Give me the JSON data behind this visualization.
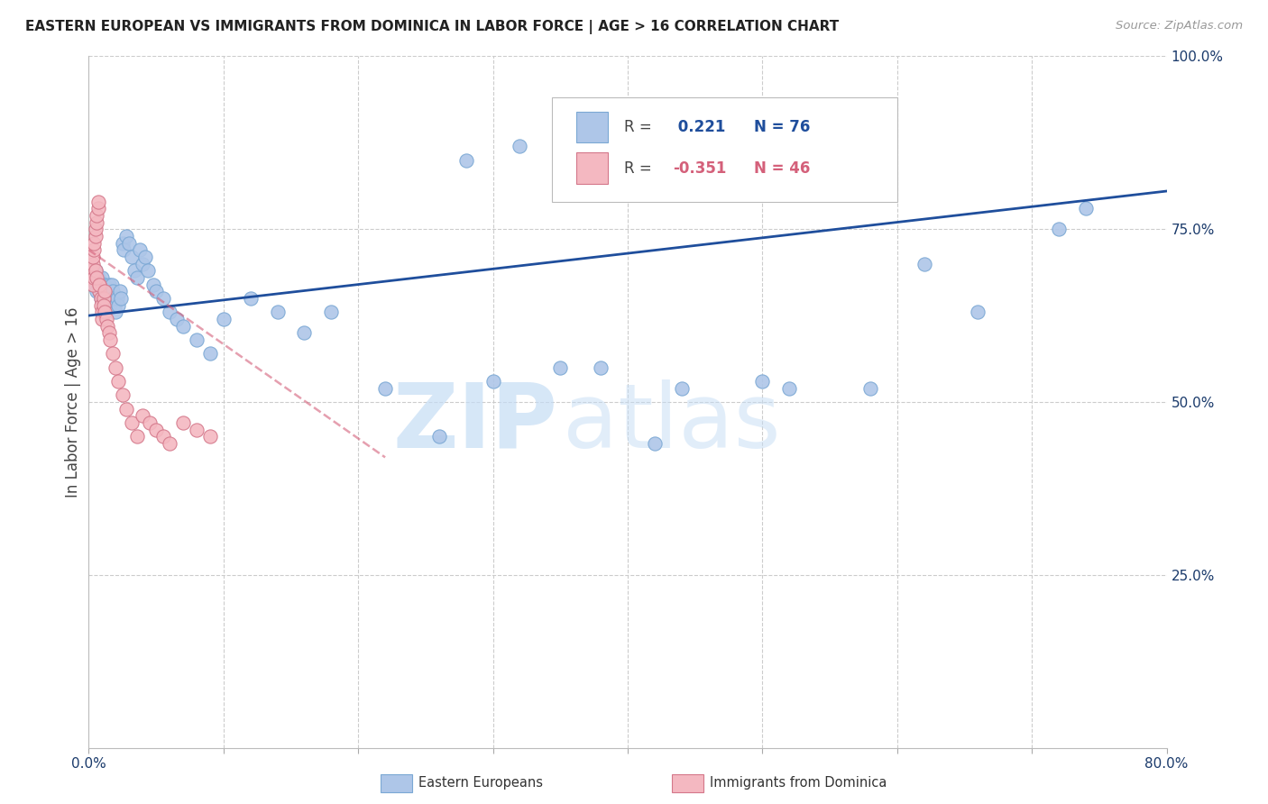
{
  "title": "EASTERN EUROPEAN VS IMMIGRANTS FROM DOMINICA IN LABOR FORCE | AGE > 16 CORRELATION CHART",
  "source": "Source: ZipAtlas.com",
  "ylabel": "In Labor Force | Age > 16",
  "xlim": [
    0.0,
    0.8
  ],
  "ylim": [
    0.0,
    1.0
  ],
  "blue_R": 0.221,
  "blue_N": 76,
  "pink_R": -0.351,
  "pink_N": 46,
  "blue_color": "#aec6e8",
  "blue_line_color": "#1f4e9c",
  "pink_color": "#f4b8c1",
  "pink_line_color": "#d4607a",
  "blue_edge_color": "#7ba8d4",
  "pink_edge_color": "#d4778a",
  "grid_color": "#cccccc",
  "watermark_zip": "ZIP",
  "watermark_atlas": "atlas",
  "legend_R_label_color": "#444444",
  "blue_scatter_x": [
    0.003,
    0.004,
    0.005,
    0.005,
    0.006,
    0.006,
    0.007,
    0.007,
    0.008,
    0.008,
    0.009,
    0.009,
    0.01,
    0.01,
    0.011,
    0.011,
    0.012,
    0.012,
    0.013,
    0.013,
    0.014,
    0.014,
    0.015,
    0.015,
    0.016,
    0.016,
    0.017,
    0.017,
    0.018,
    0.018,
    0.019,
    0.02,
    0.021,
    0.022,
    0.023,
    0.024,
    0.025,
    0.026,
    0.028,
    0.03,
    0.032,
    0.034,
    0.036,
    0.038,
    0.04,
    0.042,
    0.044,
    0.048,
    0.05,
    0.055,
    0.06,
    0.065,
    0.07,
    0.08,
    0.09,
    0.1,
    0.12,
    0.14,
    0.16,
    0.18,
    0.22,
    0.26,
    0.3,
    0.35,
    0.42,
    0.5,
    0.58,
    0.66,
    0.72,
    0.74,
    0.28,
    0.32,
    0.38,
    0.44,
    0.52,
    0.62
  ],
  "blue_scatter_y": [
    0.67,
    0.68,
    0.69,
    0.67,
    0.68,
    0.66,
    0.67,
    0.68,
    0.67,
    0.66,
    0.65,
    0.67,
    0.66,
    0.68,
    0.67,
    0.66,
    0.65,
    0.67,
    0.66,
    0.65,
    0.64,
    0.66,
    0.67,
    0.65,
    0.66,
    0.64,
    0.65,
    0.67,
    0.66,
    0.65,
    0.64,
    0.63,
    0.65,
    0.64,
    0.66,
    0.65,
    0.73,
    0.72,
    0.74,
    0.73,
    0.71,
    0.69,
    0.68,
    0.72,
    0.7,
    0.71,
    0.69,
    0.67,
    0.66,
    0.65,
    0.63,
    0.62,
    0.61,
    0.59,
    0.57,
    0.62,
    0.65,
    0.63,
    0.6,
    0.63,
    0.52,
    0.45,
    0.53,
    0.55,
    0.44,
    0.53,
    0.52,
    0.63,
    0.75,
    0.78,
    0.85,
    0.87,
    0.55,
    0.52,
    0.52,
    0.7
  ],
  "pink_scatter_x": [
    0.001,
    0.002,
    0.003,
    0.003,
    0.004,
    0.004,
    0.005,
    0.005,
    0.006,
    0.006,
    0.007,
    0.007,
    0.008,
    0.008,
    0.009,
    0.009,
    0.01,
    0.01,
    0.011,
    0.011,
    0.012,
    0.013,
    0.014,
    0.015,
    0.016,
    0.018,
    0.02,
    0.022,
    0.025,
    0.028,
    0.032,
    0.036,
    0.04,
    0.045,
    0.05,
    0.055,
    0.06,
    0.07,
    0.08,
    0.09,
    0.003,
    0.004,
    0.005,
    0.006,
    0.008,
    0.012
  ],
  "pink_scatter_y": [
    0.68,
    0.69,
    0.7,
    0.71,
    0.72,
    0.73,
    0.74,
    0.75,
    0.76,
    0.77,
    0.78,
    0.79,
    0.67,
    0.66,
    0.65,
    0.64,
    0.63,
    0.62,
    0.65,
    0.64,
    0.63,
    0.62,
    0.61,
    0.6,
    0.59,
    0.57,
    0.55,
    0.53,
    0.51,
    0.49,
    0.47,
    0.45,
    0.48,
    0.47,
    0.46,
    0.45,
    0.44,
    0.47,
    0.46,
    0.45,
    0.67,
    0.68,
    0.69,
    0.68,
    0.67,
    0.66
  ],
  "blue_line_x": [
    0.0,
    0.8
  ],
  "blue_line_y": [
    0.625,
    0.805
  ],
  "pink_line_x": [
    0.0,
    0.22
  ],
  "pink_line_y": [
    0.72,
    0.42
  ]
}
